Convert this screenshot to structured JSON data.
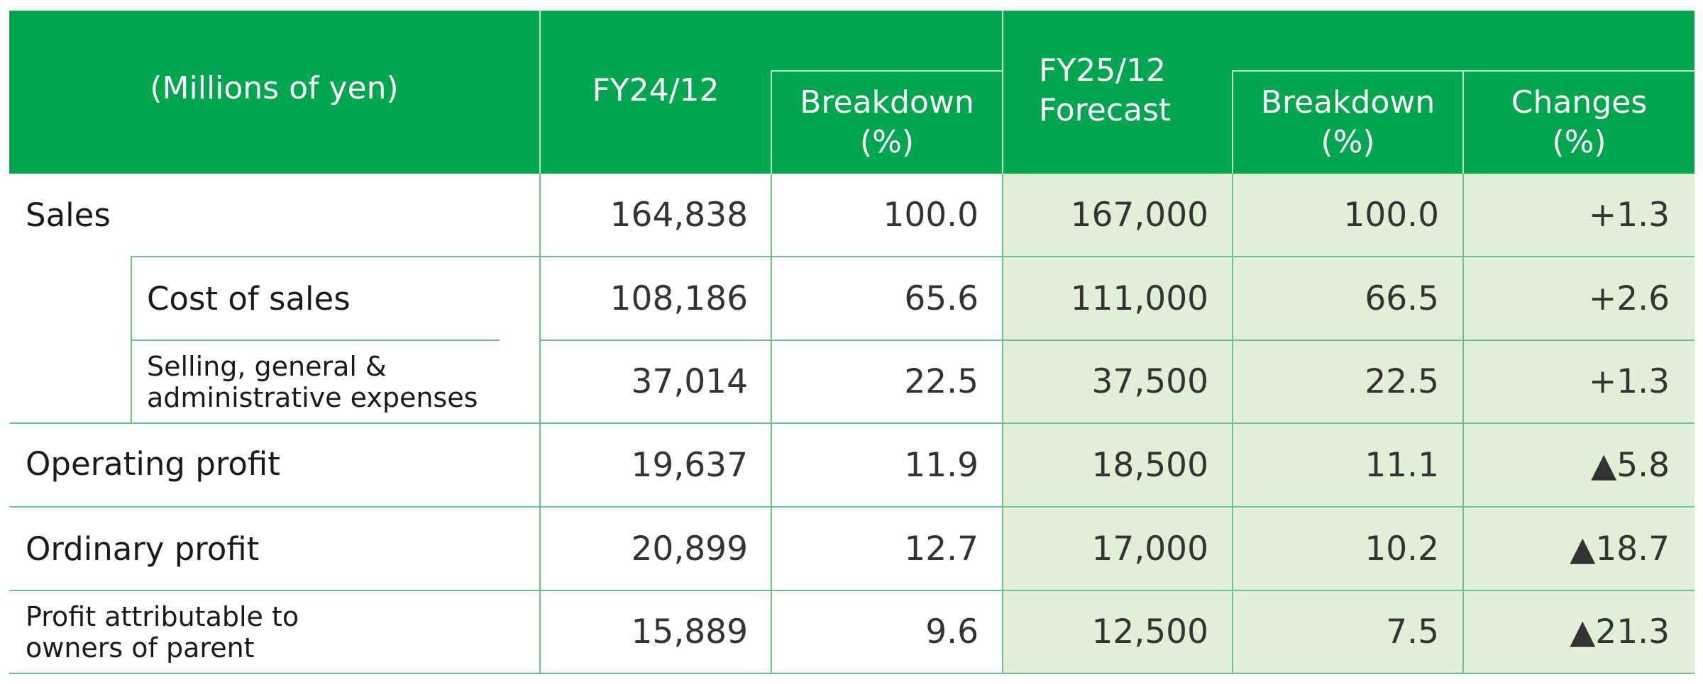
{
  "table": {
    "unit_label": "(Millions of yen)",
    "col_fy24": "FY24/12",
    "col_fy24_breakdown": [
      "Breakdown",
      "(%)"
    ],
    "col_fy25": [
      "FY25/12",
      "Forecast"
    ],
    "col_fy25_breakdown": [
      "Breakdown",
      "(%)"
    ],
    "col_changes": [
      "Changes",
      "(%)"
    ],
    "rows": [
      {
        "label": "Sales",
        "fy24": "164,838",
        "fy24_pct": "100.0",
        "fy25": "167,000",
        "fy25_pct": "100.0",
        "change": "+1.3"
      },
      {
        "label": "Cost of sales",
        "fy24": "108,186",
        "fy24_pct": "65.6",
        "fy25": "111,000",
        "fy25_pct": "66.5",
        "change": "+2.6"
      },
      {
        "label_lines": [
          "Selling, general &",
          "administrative expenses"
        ],
        "fy24": "37,014",
        "fy24_pct": "22.5",
        "fy25": "37,500",
        "fy25_pct": "22.5",
        "change": "+1.3"
      },
      {
        "label": "Operating profit",
        "fy24": "19,637",
        "fy24_pct": "11.9",
        "fy25": "18,500",
        "fy25_pct": "11.1",
        "change": "▲5.8"
      },
      {
        "label": "Ordinary profit",
        "fy24": "20,899",
        "fy24_pct": "12.7",
        "fy25": "17,000",
        "fy25_pct": "10.2",
        "change": "▲18.7"
      },
      {
        "label_lines": [
          "Profit attributable to",
          "owners of parent"
        ],
        "fy24": "15,889",
        "fy24_pct": "9.6",
        "fy25": "12,500",
        "fy25_pct": "7.5",
        "change": "▲21.3"
      }
    ]
  },
  "colors": {
    "header_green": "#00a550",
    "forecast_tint": "#e1efd6",
    "grid_line": "#6cc28c"
  }
}
